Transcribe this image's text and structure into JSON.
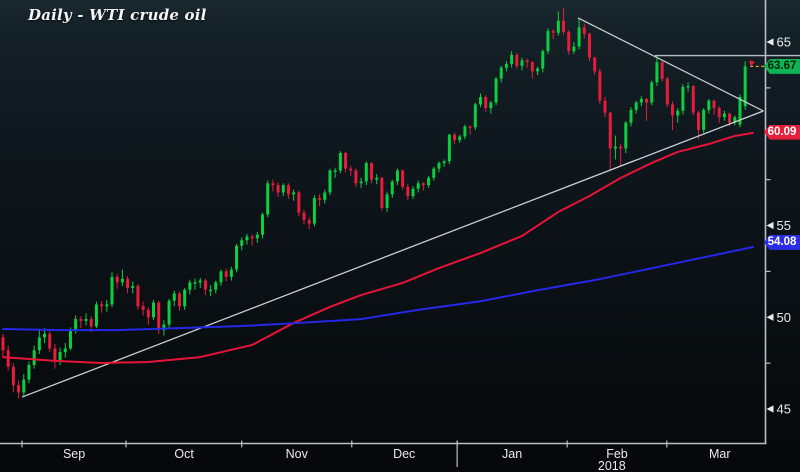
{
  "title": "Daily - WTI crude oil",
  "colors": {
    "background_top": "#1c2931",
    "background_bottom": "#06080a",
    "candle_up": "#0ccf40",
    "candle_down": "#e81c3c",
    "ma_fast": "#e81438",
    "ma_slow": "#2428e8",
    "trendline": "#c9ced3",
    "axis": "#b9bfc4",
    "axis_text": "#e9ecee",
    "last_price_link": "#ef9b2d",
    "tag_last_bg": "#0db355",
    "tag_last_fg": "#02230c",
    "tag_fast_bg": "#e61e3c",
    "tag_slow_bg": "#2b2de6",
    "tag_fg_light": "#ffffff"
  },
  "y_axis": {
    "major_labels": [
      "65",
      "60",
      "55",
      "50",
      "45"
    ],
    "major_values": [
      65,
      60,
      55,
      50,
      45
    ],
    "minor_values": [
      62.5,
      57.5,
      52.5,
      47.5
    ]
  },
  "x_axis": {
    "months": [
      {
        "label": "Sep",
        "tick_bar": 3.66,
        "center_bar": 13.7
      },
      {
        "label": "Oct",
        "tick_bar": 23.7,
        "center_bar": 34.9
      },
      {
        "label": "Nov",
        "tick_bar": 46.0,
        "center_bar": 56.6
      },
      {
        "label": "Dec",
        "tick_bar": 67.2,
        "center_bar": 77.3
      },
      {
        "label": "Jan",
        "tick_bar": 87.5,
        "center_bar": 98.1
      },
      {
        "label": "Feb",
        "tick_bar": 108.7,
        "center_bar": 118.3
      },
      {
        "label": "Mar",
        "tick_bar": 127.9,
        "center_bar": 138.1
      }
    ],
    "year": {
      "label": "2018",
      "tick_bar": 87.5,
      "center_bar": 117.3
    }
  },
  "price_tags": [
    {
      "label": "63.67",
      "value": 63.67,
      "role": "last-price"
    },
    {
      "label": "60.09",
      "value": 60.09,
      "role": "fast-ma-value"
    },
    {
      "label": "54.08",
      "value": 54.08,
      "role": "slow-ma-value"
    }
  ],
  "chart_data": {
    "type": "candlestick",
    "title": "Daily - WTI crude oil",
    "ylim": [
      43.2,
      67.3
    ],
    "y_ticks": [
      45,
      50,
      55,
      60,
      65
    ],
    "x_tick_labels": [
      "Sep",
      "Oct",
      "Nov",
      "Dec",
      "Jan",
      "Feb",
      "Mar"
    ],
    "year_label": "2018",
    "grid": "off",
    "last_price": 63.67,
    "candles_ohlc": [
      [
        48.9,
        49.1,
        47.8,
        48.2
      ],
      [
        48.2,
        48.45,
        47.1,
        47.3
      ],
      [
        47.3,
        47.5,
        45.9,
        46.3
      ],
      [
        46.3,
        46.55,
        45.58,
        45.9
      ],
      [
        45.9,
        46.9,
        45.7,
        46.6
      ],
      [
        46.6,
        47.6,
        46.4,
        47.4
      ],
      [
        47.4,
        48.45,
        47.2,
        48.2
      ],
      [
        48.2,
        49.3,
        48.0,
        48.9
      ],
      [
        48.9,
        49.4,
        48.6,
        49.1
      ],
      [
        49.1,
        49.25,
        48.1,
        48.3
      ],
      [
        48.3,
        48.55,
        47.2,
        47.6
      ],
      [
        47.6,
        48.35,
        47.4,
        48.1
      ],
      [
        48.1,
        48.6,
        47.8,
        48.3
      ],
      [
        48.3,
        49.45,
        48.2,
        49.3
      ],
      [
        49.3,
        50.1,
        49.1,
        49.9
      ],
      [
        49.9,
        50.05,
        49.4,
        49.8
      ],
      [
        49.8,
        50.2,
        49.55,
        49.9
      ],
      [
        49.9,
        50.05,
        49.2,
        49.5
      ],
      [
        49.5,
        50.85,
        49.4,
        50.7
      ],
      [
        50.7,
        50.9,
        50.25,
        50.6
      ],
      [
        50.6,
        50.95,
        50.3,
        50.7
      ],
      [
        50.7,
        52.45,
        50.55,
        52.2
      ],
      [
        52.2,
        52.35,
        51.55,
        51.9
      ],
      [
        51.9,
        52.6,
        51.7,
        52.1
      ],
      [
        52.1,
        52.25,
        51.3,
        51.6
      ],
      [
        51.6,
        51.95,
        51.3,
        51.7
      ],
      [
        51.7,
        51.8,
        50.4,
        50.6
      ],
      [
        50.6,
        50.85,
        50.1,
        50.4
      ],
      [
        50.4,
        50.55,
        49.6,
        50.0
      ],
      [
        50.0,
        50.95,
        49.85,
        50.8
      ],
      [
        50.8,
        50.9,
        49.1,
        49.3
      ],
      [
        49.3,
        49.85,
        49.0,
        49.6
      ],
      [
        49.6,
        51.0,
        49.4,
        50.9
      ],
      [
        50.9,
        51.45,
        50.6,
        51.3
      ],
      [
        51.3,
        51.4,
        50.35,
        50.6
      ],
      [
        50.6,
        51.6,
        50.4,
        51.5
      ],
      [
        51.5,
        52.05,
        51.25,
        51.9
      ],
      [
        51.9,
        52.1,
        51.5,
        51.9
      ],
      [
        51.9,
        52.15,
        51.6,
        52.0
      ],
      [
        52.0,
        52.1,
        51.2,
        51.5
      ],
      [
        51.5,
        51.75,
        51.15,
        51.5
      ],
      [
        51.5,
        52.0,
        51.3,
        51.9
      ],
      [
        51.9,
        52.6,
        51.7,
        52.5
      ],
      [
        52.5,
        52.65,
        51.95,
        52.2
      ],
      [
        52.2,
        52.75,
        52.0,
        52.6
      ],
      [
        52.6,
        54.0,
        52.45,
        53.9
      ],
      [
        53.9,
        54.35,
        53.65,
        54.2
      ],
      [
        54.2,
        54.55,
        53.95,
        54.4
      ],
      [
        54.4,
        54.5,
        53.9,
        54.3
      ],
      [
        54.3,
        54.65,
        54.05,
        54.5
      ],
      [
        54.5,
        55.7,
        54.3,
        55.6
      ],
      [
        55.6,
        57.45,
        55.45,
        57.3
      ],
      [
        57.3,
        57.5,
        56.85,
        57.2
      ],
      [
        57.2,
        57.35,
        56.55,
        56.8
      ],
      [
        56.8,
        57.3,
        56.6,
        57.2
      ],
      [
        57.2,
        57.3,
        56.45,
        56.7
      ],
      [
        56.7,
        56.95,
        56.35,
        56.8
      ],
      [
        56.8,
        56.9,
        55.5,
        55.7
      ],
      [
        55.7,
        55.85,
        55.05,
        55.3
      ],
      [
        55.3,
        55.45,
        54.8,
        55.1
      ],
      [
        55.1,
        56.65,
        54.95,
        56.5
      ],
      [
        56.5,
        56.7,
        56.05,
        56.4
      ],
      [
        56.4,
        56.95,
        56.2,
        56.8
      ],
      [
        56.8,
        58.1,
        56.65,
        58.0
      ],
      [
        58.0,
        58.15,
        57.6,
        58.0
      ],
      [
        58.0,
        59.05,
        57.85,
        58.95
      ],
      [
        58.95,
        59.0,
        57.9,
        58.1
      ],
      [
        58.1,
        58.25,
        57.7,
        58.0
      ],
      [
        58.0,
        58.1,
        57.1,
        57.3
      ],
      [
        57.3,
        57.6,
        57.05,
        57.4
      ],
      [
        57.4,
        58.5,
        57.2,
        58.4
      ],
      [
        58.4,
        58.45,
        57.3,
        57.5
      ],
      [
        57.5,
        57.8,
        57.25,
        57.6
      ],
      [
        57.6,
        57.65,
        55.8,
        55.96
      ],
      [
        55.96,
        56.85,
        55.75,
        56.7
      ],
      [
        56.7,
        57.5,
        56.5,
        57.4
      ],
      [
        57.4,
        58.1,
        57.2,
        58.0
      ],
      [
        58.0,
        58.05,
        56.95,
        57.1
      ],
      [
        57.1,
        57.25,
        56.4,
        56.6
      ],
      [
        56.6,
        57.15,
        56.45,
        57.0
      ],
      [
        57.0,
        57.45,
        56.8,
        57.3
      ],
      [
        57.3,
        57.35,
        56.9,
        57.2
      ],
      [
        57.2,
        57.7,
        57.05,
        57.6
      ],
      [
        57.6,
        58.2,
        57.45,
        58.1
      ],
      [
        58.1,
        58.5,
        57.9,
        58.4
      ],
      [
        58.4,
        58.6,
        58.2,
        58.5
      ],
      [
        58.5,
        60.0,
        58.35,
        59.95
      ],
      [
        59.95,
        60.05,
        59.45,
        59.65
      ],
      [
        59.65,
        59.95,
        59.5,
        59.85
      ],
      [
        59.85,
        60.5,
        59.7,
        60.4
      ],
      [
        60.4,
        60.45,
        59.95,
        60.35
      ],
      [
        60.35,
        61.7,
        60.2,
        61.6
      ],
      [
        61.6,
        62.2,
        61.45,
        62.0
      ],
      [
        62.0,
        62.1,
        61.2,
        61.4
      ],
      [
        61.4,
        61.8,
        61.1,
        61.7
      ],
      [
        61.7,
        63.1,
        61.55,
        63.0
      ],
      [
        63.0,
        63.7,
        62.8,
        63.6
      ],
      [
        63.6,
        63.95,
        63.4,
        63.8
      ],
      [
        63.8,
        64.5,
        63.6,
        64.3
      ],
      [
        64.3,
        64.4,
        63.55,
        63.7
      ],
      [
        63.7,
        64.15,
        63.45,
        64.0
      ],
      [
        64.0,
        64.1,
        63.6,
        63.9
      ],
      [
        63.9,
        63.95,
        63.0,
        63.4
      ],
      [
        63.4,
        63.65,
        63.2,
        63.55
      ],
      [
        63.55,
        64.6,
        63.35,
        64.5
      ],
      [
        64.5,
        65.75,
        64.35,
        65.6
      ],
      [
        65.6,
        65.7,
        65.15,
        65.5
      ],
      [
        65.5,
        66.66,
        65.35,
        66.15
      ],
      [
        66.15,
        66.85,
        65.4,
        65.55
      ],
      [
        65.55,
        65.65,
        64.3,
        64.5
      ],
      [
        64.5,
        65.0,
        64.35,
        64.75
      ],
      [
        64.75,
        66.3,
        64.6,
        65.8
      ],
      [
        65.8,
        66.0,
        65.2,
        65.45
      ],
      [
        65.45,
        65.5,
        63.95,
        64.15
      ],
      [
        64.15,
        64.2,
        63.2,
        63.4
      ],
      [
        63.4,
        63.55,
        61.6,
        61.8
      ],
      [
        61.8,
        62.0,
        60.9,
        61.15
      ],
      [
        61.15,
        61.2,
        58.07,
        59.2
      ],
      [
        59.2,
        59.9,
        58.6,
        59.3
      ],
      [
        59.3,
        59.45,
        58.25,
        59.2
      ],
      [
        59.2,
        60.7,
        58.95,
        60.6
      ],
      [
        60.6,
        61.45,
        60.4,
        61.3
      ],
      [
        61.3,
        61.8,
        61.1,
        61.7
      ],
      [
        61.7,
        62.05,
        61.5,
        61.9
      ],
      [
        61.9,
        61.95,
        60.7,
        61.7
      ],
      [
        61.7,
        62.9,
        61.55,
        62.8
      ],
      [
        62.8,
        64.24,
        62.6,
        63.9
      ],
      [
        63.9,
        63.95,
        62.85,
        63.0
      ],
      [
        63.0,
        63.1,
        61.45,
        61.6
      ],
      [
        61.6,
        61.75,
        60.2,
        61.0
      ],
      [
        61.0,
        61.4,
        60.6,
        61.25
      ],
      [
        61.25,
        62.7,
        61.05,
        62.55
      ],
      [
        62.55,
        62.8,
        62.3,
        62.6
      ],
      [
        62.6,
        62.65,
        61.0,
        61.15
      ],
      [
        61.15,
        61.25,
        59.7,
        60.2
      ],
      [
        60.2,
        61.4,
        60.05,
        61.3
      ],
      [
        61.3,
        61.9,
        61.1,
        61.8
      ],
      [
        61.8,
        61.85,
        61.05,
        61.4
      ],
      [
        61.4,
        61.5,
        60.6,
        60.9
      ],
      [
        60.9,
        61.25,
        60.7,
        61.1
      ],
      [
        61.1,
        61.15,
        60.4,
        60.6
      ],
      [
        60.6,
        61.0,
        60.45,
        60.9
      ],
      [
        60.5,
        62.15,
        60.35,
        62.0
      ],
      [
        61.5,
        63.95,
        61.3,
        63.67
      ]
    ],
    "ma_lines": [
      {
        "name": "fast-red-ma",
        "color": "#e81438",
        "points": [
          [
            0,
            47.83
          ],
          [
            10,
            47.62
          ],
          [
            19,
            47.51
          ],
          [
            28,
            47.56
          ],
          [
            38,
            47.83
          ],
          [
            48,
            48.49
          ],
          [
            56,
            49.69
          ],
          [
            63,
            50.56
          ],
          [
            69,
            51.21
          ],
          [
            77,
            51.87
          ],
          [
            84,
            52.68
          ],
          [
            92,
            53.5
          ],
          [
            100,
            54.43
          ],
          [
            107,
            55.74
          ],
          [
            113,
            56.61
          ],
          [
            119,
            57.59
          ],
          [
            125,
            58.41
          ],
          [
            130,
            59.01
          ],
          [
            136,
            59.44
          ],
          [
            141,
            59.88
          ],
          [
            144.5,
            60.05
          ]
        ]
      },
      {
        "name": "slow-blue-ma",
        "color": "#2428e8",
        "points": [
          [
            0,
            49.36
          ],
          [
            11,
            49.3
          ],
          [
            22,
            49.3
          ],
          [
            34,
            49.41
          ],
          [
            46,
            49.52
          ],
          [
            57,
            49.69
          ],
          [
            69,
            49.9
          ],
          [
            80,
            50.4
          ],
          [
            92,
            50.87
          ],
          [
            103,
            51.47
          ],
          [
            115,
            52.08
          ],
          [
            127,
            52.79
          ],
          [
            138,
            53.44
          ],
          [
            144.5,
            53.83
          ]
        ]
      }
    ],
    "trendlines": [
      {
        "name": "rising-support",
        "color": "#c9ced3",
        "points": [
          [
            3.66,
            45.65
          ],
          [
            146.5,
            61.24
          ]
        ]
      },
      {
        "name": "falling-resistance",
        "color": "#c9ced3",
        "points": [
          [
            110.8,
            66.31
          ],
          [
            146.5,
            61.24
          ]
        ]
      },
      {
        "name": "horizontal-resistance",
        "color": "#b9bfc4",
        "points": [
          [
            125.6,
            64.26
          ],
          [
            153.6,
            64.26
          ]
        ]
      }
    ]
  }
}
